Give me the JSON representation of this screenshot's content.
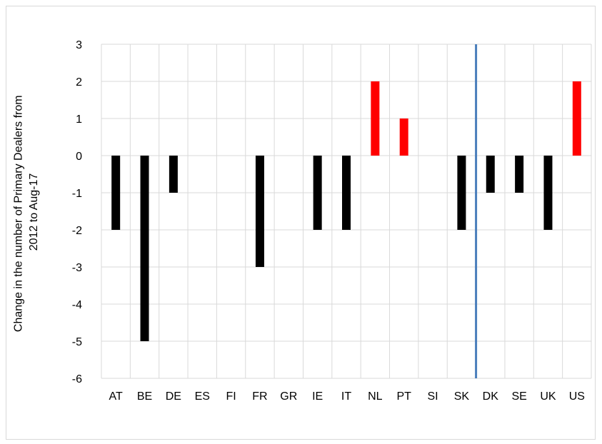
{
  "chart_data": {
    "type": "bar",
    "title": "",
    "xlabel": "",
    "ylabel_lines": [
      "Change in the number of Primary Dealers from",
      "2012 to Aug-17"
    ],
    "categories": [
      "AT",
      "BE",
      "DE",
      "ES",
      "FI",
      "FR",
      "GR",
      "IE",
      "IT",
      "NL",
      "PT",
      "SI",
      "SK",
      "DK",
      "SE",
      "UK",
      "US"
    ],
    "values": [
      -2,
      -5,
      -1,
      0,
      0,
      -3,
      0,
      -2,
      -2,
      2,
      1,
      0,
      -2,
      -1,
      -1,
      -2,
      2
    ],
    "ylim": [
      -6,
      3
    ],
    "yticks": [
      "3",
      "2",
      "1",
      "0",
      "-1",
      "-2",
      "-3",
      "-4",
      "-5",
      "-6"
    ],
    "grid": true,
    "legend": "none",
    "separator_after_category": "SK",
    "colors": {
      "negative": "#000000",
      "positive": "#ff0000",
      "separator": "#4a7ebb",
      "grid": "#d9d9d9"
    }
  }
}
